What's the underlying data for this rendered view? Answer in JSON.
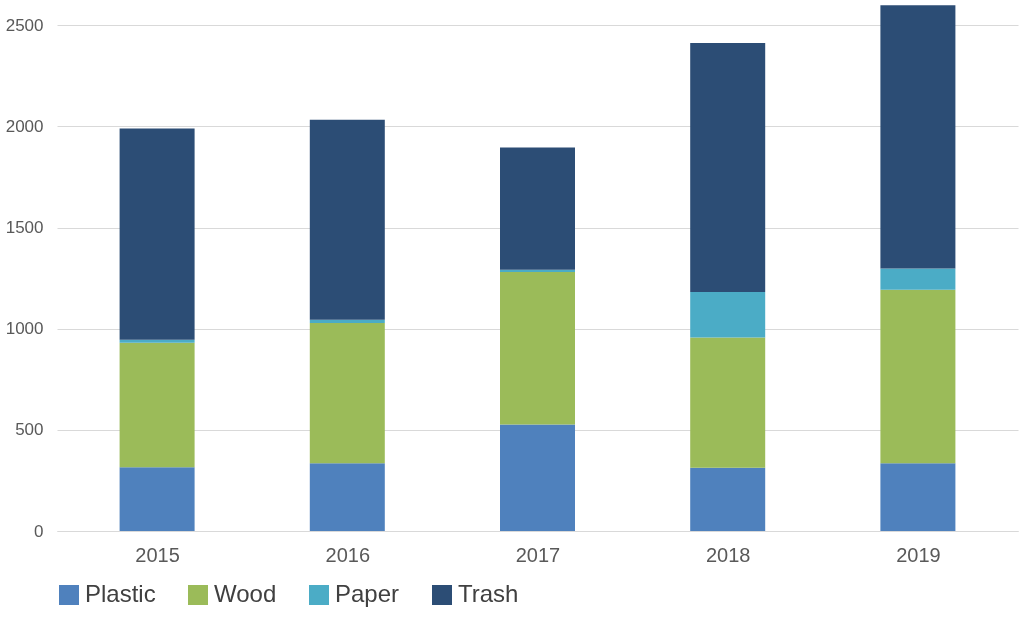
{
  "chart_data": {
    "type": "bar",
    "stacked": true,
    "categories": [
      "2015",
      "2016",
      "2017",
      "2018",
      "2019"
    ],
    "series": [
      {
        "name": "Plastic",
        "color": "#4f81bd",
        "values": [
          315,
          335,
          527,
          313,
          335
        ]
      },
      {
        "name": "Wood",
        "color": "#9bbb59",
        "values": [
          615,
          693,
          753,
          643,
          857
        ]
      },
      {
        "name": "Paper",
        "color": "#4bacc6",
        "values": [
          15,
          16,
          11,
          225,
          105
        ]
      },
      {
        "name": "Trash",
        "color": "#2c4d75",
        "values": [
          1045,
          989,
          605,
          1231,
          1302
        ]
      }
    ],
    "ylim": [
      0,
      2600
    ],
    "yticks": [
      0,
      500,
      1000,
      1500,
      2000,
      2500
    ],
    "grid": "y",
    "legend": "bottom"
  }
}
